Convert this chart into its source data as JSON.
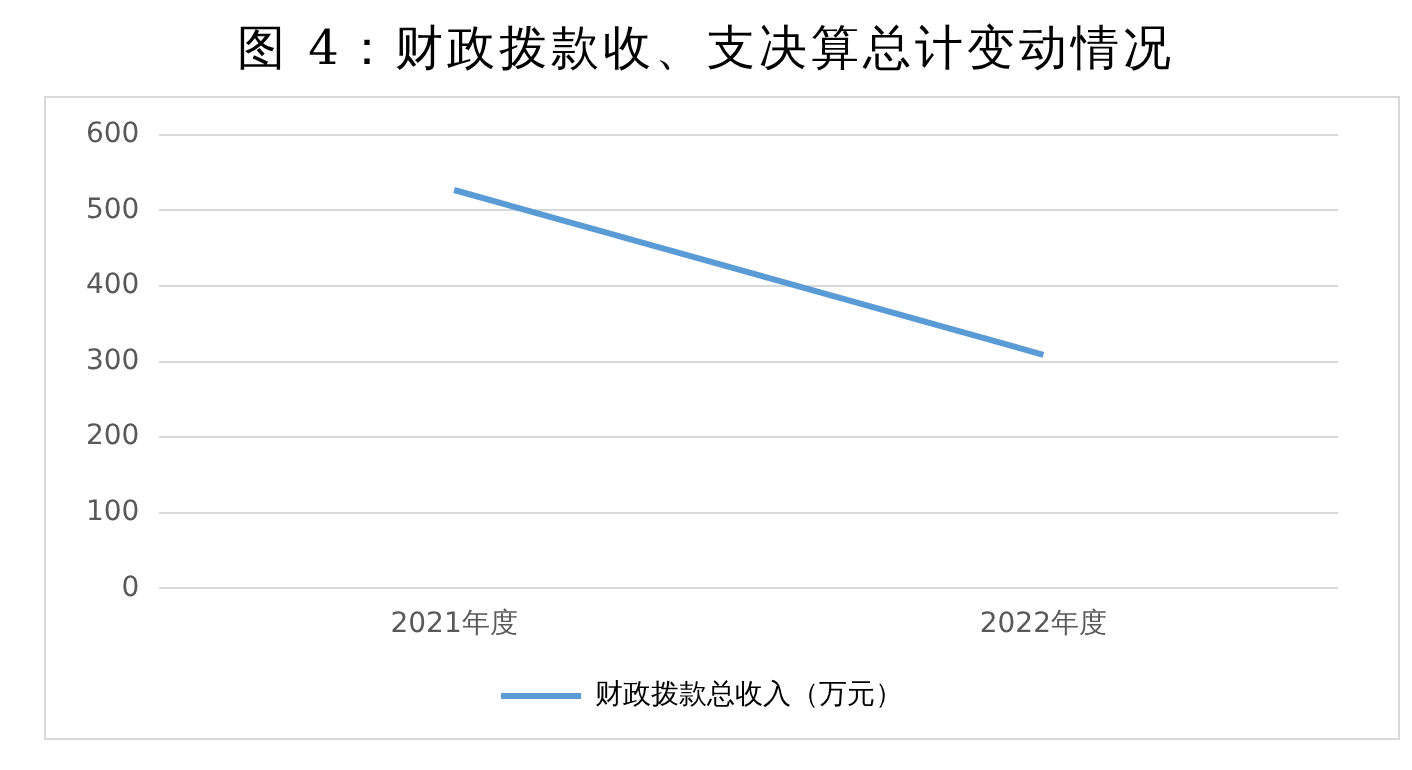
{
  "chart_data": {
    "type": "line",
    "title": "图 4：财政拨款收、支决算总计变动情况",
    "categories": [
      "2021年度",
      "2022年度"
    ],
    "series": [
      {
        "name": "财政拨款总收入（万元）",
        "color": "#5b9bd5",
        "values": [
          527,
          309
        ]
      }
    ],
    "ylim": [
      0,
      600
    ],
    "yticks": [
      0,
      100,
      200,
      300,
      400,
      500,
      600
    ],
    "grid": "y",
    "legend": "bottom",
    "marker": "none"
  }
}
